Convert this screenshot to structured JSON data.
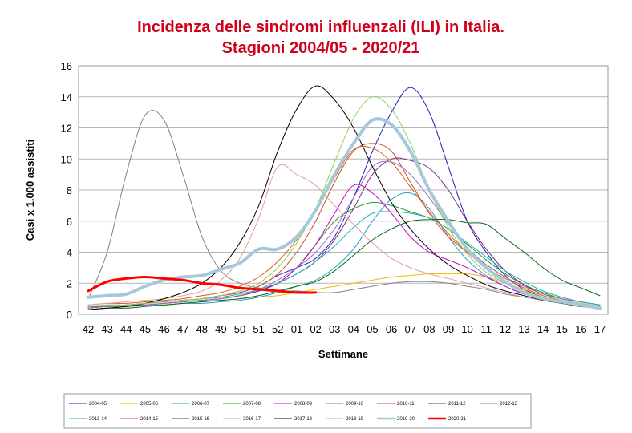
{
  "chart_data": {
    "type": "line",
    "title": "Incidenza delle sindromi influenzali (ILI) in Italia.",
    "subtitle": "Stagioni 2004/05 - 2020/21",
    "xlabel": "Settimane",
    "ylabel": "Casi x 1.000 assistiti",
    "ylim": [
      0,
      16
    ],
    "yticks": [
      "0",
      "2",
      "4",
      "6",
      "8",
      "10",
      "12",
      "14",
      "16"
    ],
    "categories": [
      "42",
      "43",
      "44",
      "45",
      "46",
      "47",
      "48",
      "49",
      "50",
      "51",
      "52",
      "01",
      "02",
      "03",
      "04",
      "05",
      "06",
      "07",
      "08",
      "09",
      "10",
      "11",
      "12",
      "13",
      "14",
      "15",
      "16",
      "17"
    ],
    "grid": true,
    "legend_position": "bottom",
    "series": [
      {
        "name": "2004-05",
        "color": "#1f1fbf",
        "width": 1,
        "values": [
          0.5,
          0.5,
          0.6,
          0.7,
          0.8,
          0.9,
          1.0,
          1.2,
          1.4,
          1.8,
          2.5,
          3.0,
          3.6,
          5.0,
          7.5,
          10.5,
          13.0,
          14.6,
          13.0,
          9.5,
          6.0,
          4.0,
          2.5,
          1.6,
          1.1,
          0.8,
          0.6,
          0.4
        ]
      },
      {
        "name": "2005-06",
        "color": "#f5b800",
        "width": 1,
        "values": [
          0.4,
          0.5,
          0.5,
          0.6,
          0.6,
          0.7,
          0.8,
          0.9,
          1.0,
          1.1,
          1.2,
          1.4,
          1.6,
          1.8,
          2.0,
          2.2,
          2.4,
          2.5,
          2.6,
          2.6,
          2.6,
          2.4,
          2.0,
          1.6,
          1.2,
          0.9,
          0.7,
          0.5
        ]
      },
      {
        "name": "2006-07",
        "color": "#1fa3c9",
        "width": 1,
        "values": [
          0.4,
          0.5,
          0.5,
          0.6,
          0.6,
          0.7,
          0.7,
          0.8,
          0.9,
          1.1,
          1.4,
          1.8,
          2.2,
          3.0,
          4.2,
          6.0,
          7.4,
          7.8,
          6.8,
          5.0,
          3.5,
          2.5,
          1.8,
          1.3,
          1.0,
          0.8,
          0.6,
          0.4
        ]
      },
      {
        "name": "2007-08",
        "color": "#1a9e1a",
        "width": 1,
        "values": [
          0.5,
          0.5,
          0.6,
          0.6,
          0.7,
          0.8,
          0.9,
          1.0,
          1.2,
          1.5,
          2.0,
          3.0,
          4.5,
          6.0,
          6.8,
          7.2,
          7.0,
          6.6,
          6.2,
          5.5,
          4.5,
          3.5,
          2.6,
          1.9,
          1.4,
          1.0,
          0.8,
          0.6
        ]
      },
      {
        "name": "2008-09",
        "color": "#d100d1",
        "width": 1,
        "values": [
          0.4,
          0.5,
          0.5,
          0.6,
          0.7,
          0.8,
          0.9,
          1.0,
          1.2,
          1.5,
          2.0,
          3.0,
          4.5,
          6.5,
          8.3,
          7.8,
          6.5,
          5.0,
          4.0,
          3.5,
          3.0,
          2.4,
          1.8,
          1.3,
          1.0,
          0.8,
          0.6,
          0.4
        ]
      },
      {
        "name": "2009-10",
        "color": "#808080",
        "width": 1,
        "values": [
          1.0,
          4.0,
          9.0,
          12.8,
          12.5,
          9.0,
          5.0,
          2.8,
          2.0,
          1.7,
          1.5,
          1.5,
          1.4,
          1.4,
          1.6,
          1.8,
          2.0,
          2.1,
          2.1,
          2.0,
          1.8,
          1.6,
          1.3,
          1.1,
          0.9,
          0.8,
          0.6,
          0.5
        ]
      },
      {
        "name": "2010-11",
        "color": "#c85020",
        "width": 1,
        "values": [
          0.5,
          0.6,
          0.6,
          0.7,
          0.8,
          0.9,
          1.0,
          1.2,
          1.4,
          1.8,
          2.6,
          4.0,
          6.0,
          8.5,
          10.5,
          11.0,
          10.5,
          8.5,
          6.5,
          5.0,
          4.0,
          3.2,
          2.4,
          1.8,
          1.3,
          1.0,
          0.8,
          0.6
        ]
      },
      {
        "name": "2011-12",
        "color": "#7a2a7a",
        "width": 1,
        "values": [
          0.4,
          0.5,
          0.5,
          0.6,
          0.7,
          0.8,
          0.9,
          1.0,
          1.2,
          1.5,
          2.0,
          2.6,
          3.4,
          4.8,
          6.8,
          9.0,
          10.0,
          9.9,
          9.4,
          8.0,
          6.0,
          4.2,
          2.8,
          1.9,
          1.3,
          1.0,
          0.8,
          0.6
        ]
      },
      {
        "name": "2012-13",
        "color": "#a070c0",
        "width": 1,
        "values": [
          0.4,
          0.5,
          0.5,
          0.6,
          0.7,
          0.8,
          0.9,
          1.0,
          1.2,
          1.6,
          2.2,
          3.0,
          4.0,
          5.5,
          7.5,
          9.5,
          9.8,
          9.0,
          7.5,
          5.8,
          4.3,
          3.2,
          2.4,
          1.8,
          1.3,
          1.0,
          0.8,
          0.6
        ]
      },
      {
        "name": "2013-14",
        "color": "#1fb0c0",
        "width": 1,
        "values": [
          0.5,
          0.6,
          0.6,
          0.7,
          0.8,
          0.9,
          1.0,
          1.1,
          1.3,
          1.6,
          2.0,
          2.6,
          3.4,
          4.4,
          5.6,
          6.5,
          6.6,
          6.5,
          6.2,
          5.5,
          4.6,
          3.7,
          2.8,
          2.1,
          1.5,
          1.1,
          0.8,
          0.6
        ]
      },
      {
        "name": "2014-15",
        "color": "#e05a1f",
        "width": 1,
        "values": [
          0.6,
          0.7,
          0.7,
          0.8,
          0.9,
          1.0,
          1.2,
          1.4,
          1.8,
          2.4,
          3.4,
          4.8,
          6.6,
          8.8,
          10.6,
          10.7,
          9.8,
          8.2,
          6.6,
          5.2,
          4.0,
          3.0,
          2.3,
          1.7,
          1.2,
          0.9,
          0.7,
          0.5
        ]
      },
      {
        "name": "2015-16",
        "color": "#0a6a1a",
        "width": 1,
        "values": [
          0.3,
          0.4,
          0.4,
          0.5,
          0.6,
          0.7,
          0.8,
          0.9,
          1.0,
          1.2,
          1.5,
          1.8,
          2.1,
          2.8,
          3.8,
          4.8,
          5.5,
          6.0,
          6.1,
          6.1,
          5.9,
          5.8,
          4.9,
          4.0,
          3.0,
          2.2,
          1.7,
          1.2
        ]
      },
      {
        "name": "2016-17",
        "color": "#e0a0a0",
        "width": 1,
        "values": [
          0.6,
          0.7,
          0.8,
          0.9,
          1.0,
          1.2,
          1.5,
          2.2,
          3.6,
          6.2,
          9.5,
          9.0,
          8.3,
          7.0,
          5.8,
          4.6,
          3.6,
          3.0,
          2.6,
          2.3,
          2.0,
          1.7,
          1.4,
          1.1,
          0.9,
          0.7,
          0.6,
          0.5
        ]
      },
      {
        "name": "2017-18",
        "color": "#000000",
        "width": 1,
        "values": [
          0.3,
          0.4,
          0.5,
          0.7,
          1.0,
          1.4,
          2.0,
          3.0,
          4.6,
          7.0,
          10.5,
          13.2,
          14.7,
          13.8,
          12.0,
          9.5,
          7.2,
          5.5,
          4.2,
          3.2,
          2.5,
          1.9,
          1.5,
          1.2,
          0.9,
          0.7,
          0.5,
          0.4
        ]
      },
      {
        "name": "2018-19",
        "color": "#8fd14f",
        "width": 1,
        "values": [
          0.5,
          0.6,
          0.6,
          0.7,
          0.8,
          0.9,
          1.0,
          1.2,
          1.5,
          2.0,
          3.0,
          4.6,
          6.8,
          9.8,
          12.6,
          14.0,
          13.2,
          11.0,
          8.0,
          5.6,
          3.9,
          2.7,
          2.0,
          1.5,
          1.1,
          0.9,
          0.7,
          0.5
        ]
      },
      {
        "name": "2019-20",
        "color": "#a6c8dc",
        "width": 4,
        "values": [
          1.1,
          1.2,
          1.3,
          1.8,
          2.2,
          2.4,
          2.5,
          2.9,
          3.3,
          4.2,
          4.2,
          5.0,
          6.7,
          9.0,
          11.0,
          12.5,
          12.2,
          10.5,
          8.0,
          6.0,
          4.2,
          3.0,
          2.1,
          1.4,
          1.0,
          0.8,
          0.6,
          0.4
        ]
      },
      {
        "name": "2020-21",
        "color": "#ff0000",
        "width": 3,
        "values": [
          1.5,
          2.1,
          2.3,
          2.4,
          2.3,
          2.2,
          2.0,
          1.9,
          1.7,
          1.6,
          1.5,
          1.4,
          1.4,
          null,
          null,
          null,
          null,
          null,
          null,
          null,
          null,
          null,
          null,
          null,
          null,
          null,
          null,
          null
        ]
      }
    ]
  }
}
